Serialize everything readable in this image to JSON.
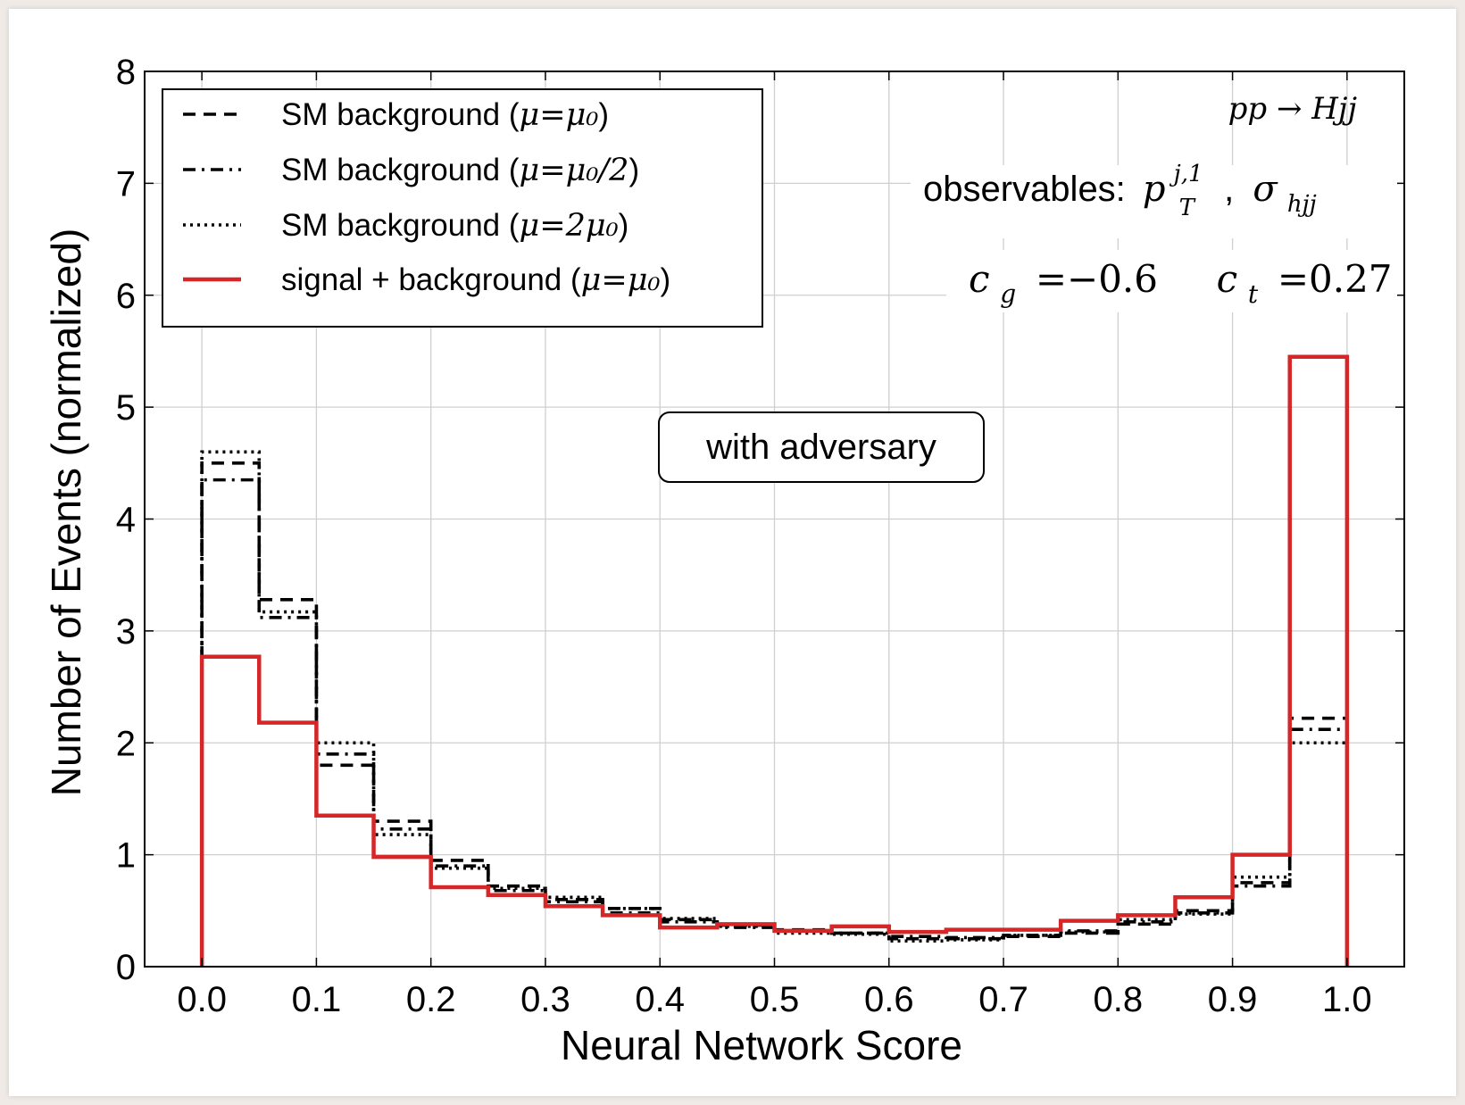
{
  "chart_data": {
    "type": "histogram",
    "xlabel": "Neural Network Score",
    "ylabel": "Number of Events (normalized)",
    "xlim": [
      -0.05,
      1.05
    ],
    "ylim": [
      0,
      8
    ],
    "grid": true,
    "legend_position": "top-left",
    "bin_edges": [
      0.0,
      0.05,
      0.1,
      0.15,
      0.2,
      0.25,
      0.3,
      0.35,
      0.4,
      0.45,
      0.5,
      0.55,
      0.6,
      0.65,
      0.7,
      0.75,
      0.8,
      0.85,
      0.9,
      0.95,
      1.0
    ],
    "x_ticks": [
      "0.0",
      "0.1",
      "0.2",
      "0.3",
      "0.4",
      "0.5",
      "0.6",
      "0.7",
      "0.8",
      "0.9",
      "1.0"
    ],
    "y_ticks": [
      "0",
      "1",
      "2",
      "3",
      "4",
      "5",
      "6",
      "7",
      "8"
    ],
    "series": [
      {
        "name": "SM background (μ = μ0)",
        "style": "dashed",
        "color": "#000000",
        "values": [
          4.5,
          3.28,
          1.8,
          1.3,
          0.95,
          0.72,
          0.6,
          0.52,
          0.42,
          0.37,
          0.33,
          0.3,
          0.25,
          0.25,
          0.27,
          0.3,
          0.38,
          0.5,
          0.75,
          2.22
        ]
      },
      {
        "name": "SM background (μ = μ0/2)",
        "style": "dashdot",
        "color": "#000000",
        "values": [
          4.35,
          3.12,
          1.9,
          1.23,
          0.9,
          0.68,
          0.58,
          0.48,
          0.4,
          0.35,
          0.32,
          0.3,
          0.27,
          0.26,
          0.28,
          0.32,
          0.4,
          0.48,
          0.72,
          2.12
        ]
      },
      {
        "name": "SM background (μ = 2μ0)",
        "style": "dotted",
        "color": "#000000",
        "values": [
          4.6,
          3.17,
          2.0,
          1.18,
          0.88,
          0.7,
          0.62,
          0.52,
          0.43,
          0.36,
          0.3,
          0.29,
          0.23,
          0.24,
          0.28,
          0.31,
          0.42,
          0.47,
          0.8,
          2.0
        ]
      },
      {
        "name": "signal + background (μ = μ0)",
        "style": "solid",
        "color": "#d62728",
        "values": [
          2.77,
          2.18,
          1.35,
          0.98,
          0.71,
          0.64,
          0.54,
          0.46,
          0.35,
          0.38,
          0.32,
          0.36,
          0.31,
          0.33,
          0.33,
          0.41,
          0.46,
          0.62,
          1.0,
          5.45
        ]
      }
    ],
    "legend": [
      {
        "prefix": "SM background (",
        "math": "μ=μ₀",
        "suffix": ")"
      },
      {
        "prefix": "SM background (",
        "math": "μ=μ₀/2",
        "suffix": ")"
      },
      {
        "prefix": "SM background (",
        "math": "μ=2μ₀",
        "suffix": ")"
      },
      {
        "prefix": "signal + background (",
        "math": "μ=μ₀",
        "suffix": ")"
      }
    ],
    "annotations": {
      "process": "pp → Hjj",
      "observables_label": "observables:",
      "observables_1": "p",
      "observables_1_sup": "j,1",
      "observables_1_sub": "T",
      "observables_sep": ",",
      "observables_2": "σ",
      "observables_2_sub": "hjj",
      "cg_symbol": "c",
      "cg_sub": "g",
      "cg_value": "=−0.6",
      "ct_symbol": "c",
      "ct_sub": "t",
      "ct_value": "=0.27",
      "box_label": "with adversary"
    }
  }
}
